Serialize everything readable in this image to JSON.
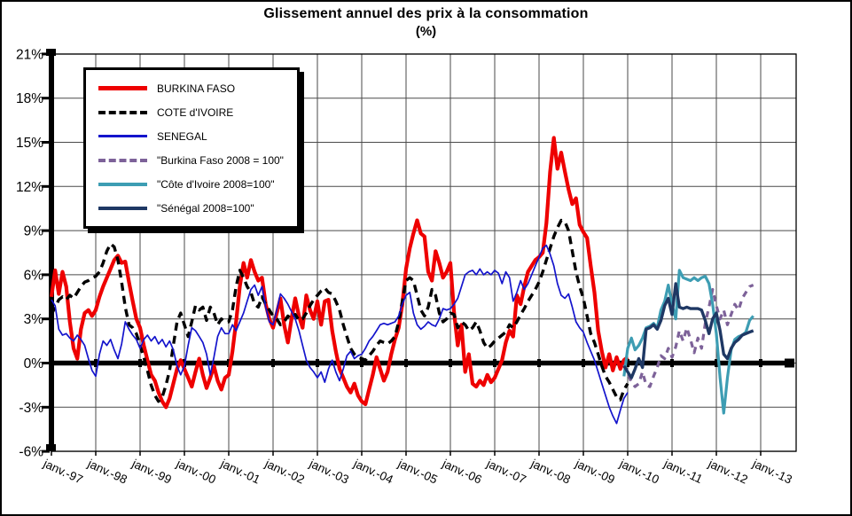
{
  "chart_data": {
    "type": "line",
    "title": "Glissement annuel des prix à la consommation",
    "subtitle": "(%)",
    "grid": true,
    "legend_position": "top-left-inside",
    "x_axis": {
      "labels": [
        "janv.-97",
        "janv.-98",
        "janv.-99",
        "janv.-00",
        "janv.-01",
        "janv.-02",
        "janv.-03",
        "janv.-04",
        "janv.-05",
        "janv.-06",
        "janv.-07",
        "janv.-08",
        "janv.-09",
        "janv.-10",
        "janv.-11",
        "janv.-12",
        "janv.-13"
      ],
      "start_year": 1997,
      "end_year": 2013,
      "frequency": "monthly"
    },
    "y_axis": {
      "tick_labels": [
        "21%",
        "18%",
        "15%",
        "12%",
        "9%",
        "6%",
        "3%",
        "0%",
        "-3%",
        "-6%"
      ],
      "tick_values": [
        21,
        18,
        15,
        12,
        9,
        6,
        3,
        0,
        -3,
        -6
      ],
      "min": -6,
      "max": 21,
      "step": 3,
      "unit": "%"
    },
    "series": [
      {
        "name": "BURKINA FASO",
        "color": "#ee0000",
        "width": 4.2,
        "dash": null,
        "start": {
          "year": 1997,
          "month": 1
        },
        "values": [
          4.5,
          6.3,
          4.7,
          6.2,
          5.2,
          2.8,
          1.0,
          0.3,
          2.3,
          3.4,
          3.6,
          3.2,
          3.6,
          4.5,
          5.2,
          5.8,
          6.4,
          7.0,
          7.3,
          6.8,
          6.9,
          5.5,
          4.2,
          3.0,
          2.4,
          1.2,
          0.2,
          -0.8,
          -1.2,
          -2.0,
          -2.6,
          -3.0,
          -2.4,
          -1.4,
          -0.4,
          0.2,
          -0.4,
          -1.0,
          -1.6,
          -0.6,
          0.3,
          -0.8,
          -1.7,
          -1.0,
          -0.2,
          -1.2,
          -1.8,
          -1.0,
          -0.8,
          0.8,
          2.8,
          5.2,
          6.8,
          5.8,
          7.0,
          6.2,
          5.6,
          5.8,
          4.0,
          3.0,
          2.4,
          3.4,
          4.4,
          2.6,
          1.4,
          3.0,
          4.4,
          3.2,
          2.4,
          4.6,
          3.6,
          3.0,
          4.2,
          2.6,
          4.2,
          4.3,
          2.2,
          0.8,
          -0.4,
          -1.0,
          -1.6,
          -2.0,
          -1.4,
          -2.2,
          -2.6,
          -2.8,
          -1.8,
          -0.8,
          0.4,
          -0.4,
          -1.2,
          -0.6,
          0.6,
          1.6,
          2.4,
          4.0,
          6.4,
          7.8,
          8.8,
          9.7,
          8.8,
          8.6,
          6.2,
          5.6,
          7.6,
          6.8,
          5.8,
          6.2,
          6.8,
          3.4,
          1.2,
          2.6,
          -0.6,
          0.6,
          -1.4,
          -1.6,
          -1.2,
          -1.5,
          -0.8,
          -1.3,
          -1.0,
          -0.4,
          0.2,
          1.4,
          2.2,
          1.8,
          4.6,
          4.0,
          5.2,
          6.2,
          6.6,
          7.0,
          7.2,
          7.5,
          9.5,
          13.0,
          15.3,
          13.2,
          14.3,
          13.0,
          11.8,
          10.8,
          11.2,
          9.4,
          8.9,
          8.5,
          6.6,
          4.8,
          2.2,
          0.8,
          -0.3,
          0.6,
          -0.5,
          0.4,
          -0.4,
          0.2,
          0.4
        ]
      },
      {
        "name": "COTE d'IVOIRE",
        "color": "#000000",
        "width": 3.4,
        "dash": "9 6",
        "start": {
          "year": 1997,
          "month": 1
        },
        "values": [
          3.3,
          3.8,
          4.3,
          4.5,
          4.3,
          4.6,
          4.4,
          4.8,
          5.2,
          5.5,
          5.6,
          5.8,
          5.9,
          6.2,
          6.8,
          7.6,
          8.1,
          7.9,
          7.0,
          5.5,
          3.8,
          2.6,
          2.4,
          2.0,
          1.2,
          0.4,
          -0.5,
          -1.5,
          -2.2,
          -2.6,
          -2.3,
          -1.5,
          -0.5,
          1.2,
          2.8,
          3.4,
          2.6,
          1.8,
          2.8,
          3.9,
          3.6,
          3.8,
          2.9,
          3.8,
          3.4,
          2.6,
          3.0,
          2.8,
          2.8,
          3.6,
          5.2,
          6.3,
          5.8,
          5.2,
          4.8,
          4.0,
          3.8,
          4.5,
          4.0,
          3.6,
          3.2,
          3.0,
          2.6,
          2.8,
          3.2,
          3.0,
          3.3,
          2.9,
          3.0,
          3.4,
          3.9,
          4.3,
          4.6,
          4.9,
          5.1,
          4.8,
          4.7,
          4.2,
          3.6,
          2.6,
          1.8,
          1.0,
          0.6,
          0.4,
          0.3,
          0.2,
          0.5,
          0.8,
          1.2,
          1.5,
          1.4,
          1.3,
          1.5,
          1.8,
          2.8,
          4.2,
          5.6,
          5.8,
          5.6,
          4.6,
          3.6,
          3.2,
          3.8,
          5.0,
          4.6,
          3.4,
          2.8,
          3.0,
          3.4,
          3.3,
          2.4,
          2.8,
          2.6,
          2.2,
          2.4,
          2.8,
          2.2,
          1.4,
          1.0,
          1.2,
          1.5,
          1.7,
          1.9,
          2.1,
          2.6,
          2.4,
          2.8,
          3.3,
          3.7,
          4.2,
          4.6,
          5.0,
          5.5,
          6.2,
          7.0,
          7.8,
          8.6,
          9.2,
          9.7,
          9.6,
          9.0,
          7.6,
          6.2,
          5.2,
          4.4,
          3.2,
          2.0,
          1.4,
          0.6,
          -0.2,
          -0.9,
          -1.3,
          -1.8,
          -2.3,
          -2.5,
          -1.8,
          -1.4
        ]
      },
      {
        "name": "SENEGAL",
        "color": "#1414cc",
        "width": 1.7,
        "dash": null,
        "start": {
          "year": 1997,
          "month": 1
        },
        "values": [
          4.3,
          3.9,
          2.3,
          1.9,
          2.0,
          1.7,
          1.5,
          1.9,
          1.6,
          1.2,
          0.3,
          -0.5,
          -0.9,
          0.6,
          1.5,
          1.2,
          1.6,
          0.9,
          0.3,
          1.3,
          2.8,
          2.3,
          1.9,
          1.6,
          1.0,
          1.6,
          1.9,
          1.5,
          1.8,
          1.3,
          1.6,
          1.1,
          1.5,
          0.9,
          -0.2,
          -0.8,
          -0.2,
          1.2,
          2.4,
          2.2,
          1.8,
          1.4,
          0.6,
          -0.8,
          0.4,
          1.8,
          2.4,
          2.0,
          2.0,
          2.6,
          2.2,
          2.8,
          3.4,
          4.2,
          5.0,
          5.3,
          4.6,
          5.2,
          3.8,
          2.8,
          2.6,
          3.6,
          4.7,
          4.4,
          4.0,
          3.5,
          3.0,
          2.2,
          1.2,
          0.2,
          -0.3,
          -0.6,
          -1.0,
          -0.6,
          -1.3,
          -0.4,
          0.2,
          -0.6,
          -1.2,
          -0.4,
          0.5,
          0.8,
          0.3,
          0.5,
          0.6,
          1.0,
          1.5,
          1.8,
          2.2,
          2.6,
          2.7,
          2.6,
          2.7,
          2.8,
          3.2,
          4.0,
          4.6,
          4.8,
          3.4,
          2.6,
          2.3,
          2.5,
          2.8,
          2.6,
          2.5,
          3.0,
          3.7,
          3.6,
          3.7,
          4.0,
          4.4,
          5.2,
          6.0,
          6.2,
          6.3,
          6.0,
          6.4,
          6.0,
          6.2,
          6.0,
          6.3,
          6.1,
          5.4,
          6.2,
          5.8,
          4.2,
          4.8,
          5.6,
          5.0,
          5.4,
          6.0,
          6.6,
          7.2,
          7.8,
          8.0,
          7.4,
          6.6,
          5.4,
          4.6,
          4.4,
          4.7,
          3.8,
          2.8,
          2.4,
          2.1,
          1.4,
          0.8,
          0.2,
          -0.6,
          -1.4,
          -2.2,
          -3.0,
          -3.6,
          -4.1,
          -3.2,
          -2.4,
          -2.0
        ]
      },
      {
        "name": "\"Burkina Faso 2008 = 100\"",
        "color": "#7d6299",
        "width": 3.2,
        "dash": "7 6",
        "start": {
          "year": 2009,
          "month": 12
        },
        "values": [
          -0.1,
          -0.7,
          -1.3,
          -1.6,
          -1.4,
          -0.6,
          -1.5,
          -1.6,
          -0.9,
          -0.3,
          0.5,
          0.3,
          1.0,
          0.4,
          1.1,
          2.2,
          1.5,
          2.4,
          1.6,
          0.7,
          1.7,
          1.0,
          2.7,
          3.8,
          5.0,
          3.9,
          3.0,
          3.6,
          2.6,
          3.3,
          4.0,
          3.6,
          4.4,
          4.8,
          5.2,
          5.3
        ]
      },
      {
        "name": "\"Côte d'Ivoire 2008=100\"",
        "color": "#3d9db3",
        "width": 3.2,
        "dash": null,
        "start": {
          "year": 2009,
          "month": 12
        },
        "values": [
          -0.9,
          1.0,
          1.7,
          0.9,
          1.2,
          1.7,
          2.4,
          2.5,
          2.7,
          2.4,
          3.6,
          4.2,
          5.3,
          4.0,
          3.0,
          6.3,
          5.8,
          5.7,
          5.6,
          5.8,
          5.6,
          5.8,
          5.9,
          5.4,
          4.0,
          2.0,
          -1.0,
          -3.4,
          -1.0,
          0.9,
          1.6,
          1.8,
          1.9,
          2.1,
          2.9,
          3.2
        ]
      },
      {
        "name": "\"Sénégal 2008=100\"",
        "color": "#1f3864",
        "width": 3.4,
        "dash": null,
        "start": {
          "year": 2009,
          "month": 12
        },
        "values": [
          -0.2,
          -0.6,
          -1.0,
          -0.4,
          0.3,
          -0.3,
          2.3,
          2.4,
          2.6,
          2.3,
          2.9,
          3.9,
          4.4,
          3.3,
          5.4,
          3.8,
          3.7,
          3.8,
          3.7,
          3.7,
          3.7,
          3.6,
          2.9,
          2.0,
          3.0,
          3.4,
          2.2,
          0.6,
          0.3,
          1.0,
          1.4,
          1.6,
          1.9,
          2.0,
          2.1,
          2.2
        ]
      }
    ],
    "colors": {
      "grid": "#4a4a4a",
      "axis": "#000000",
      "background": "#ffffff"
    }
  }
}
